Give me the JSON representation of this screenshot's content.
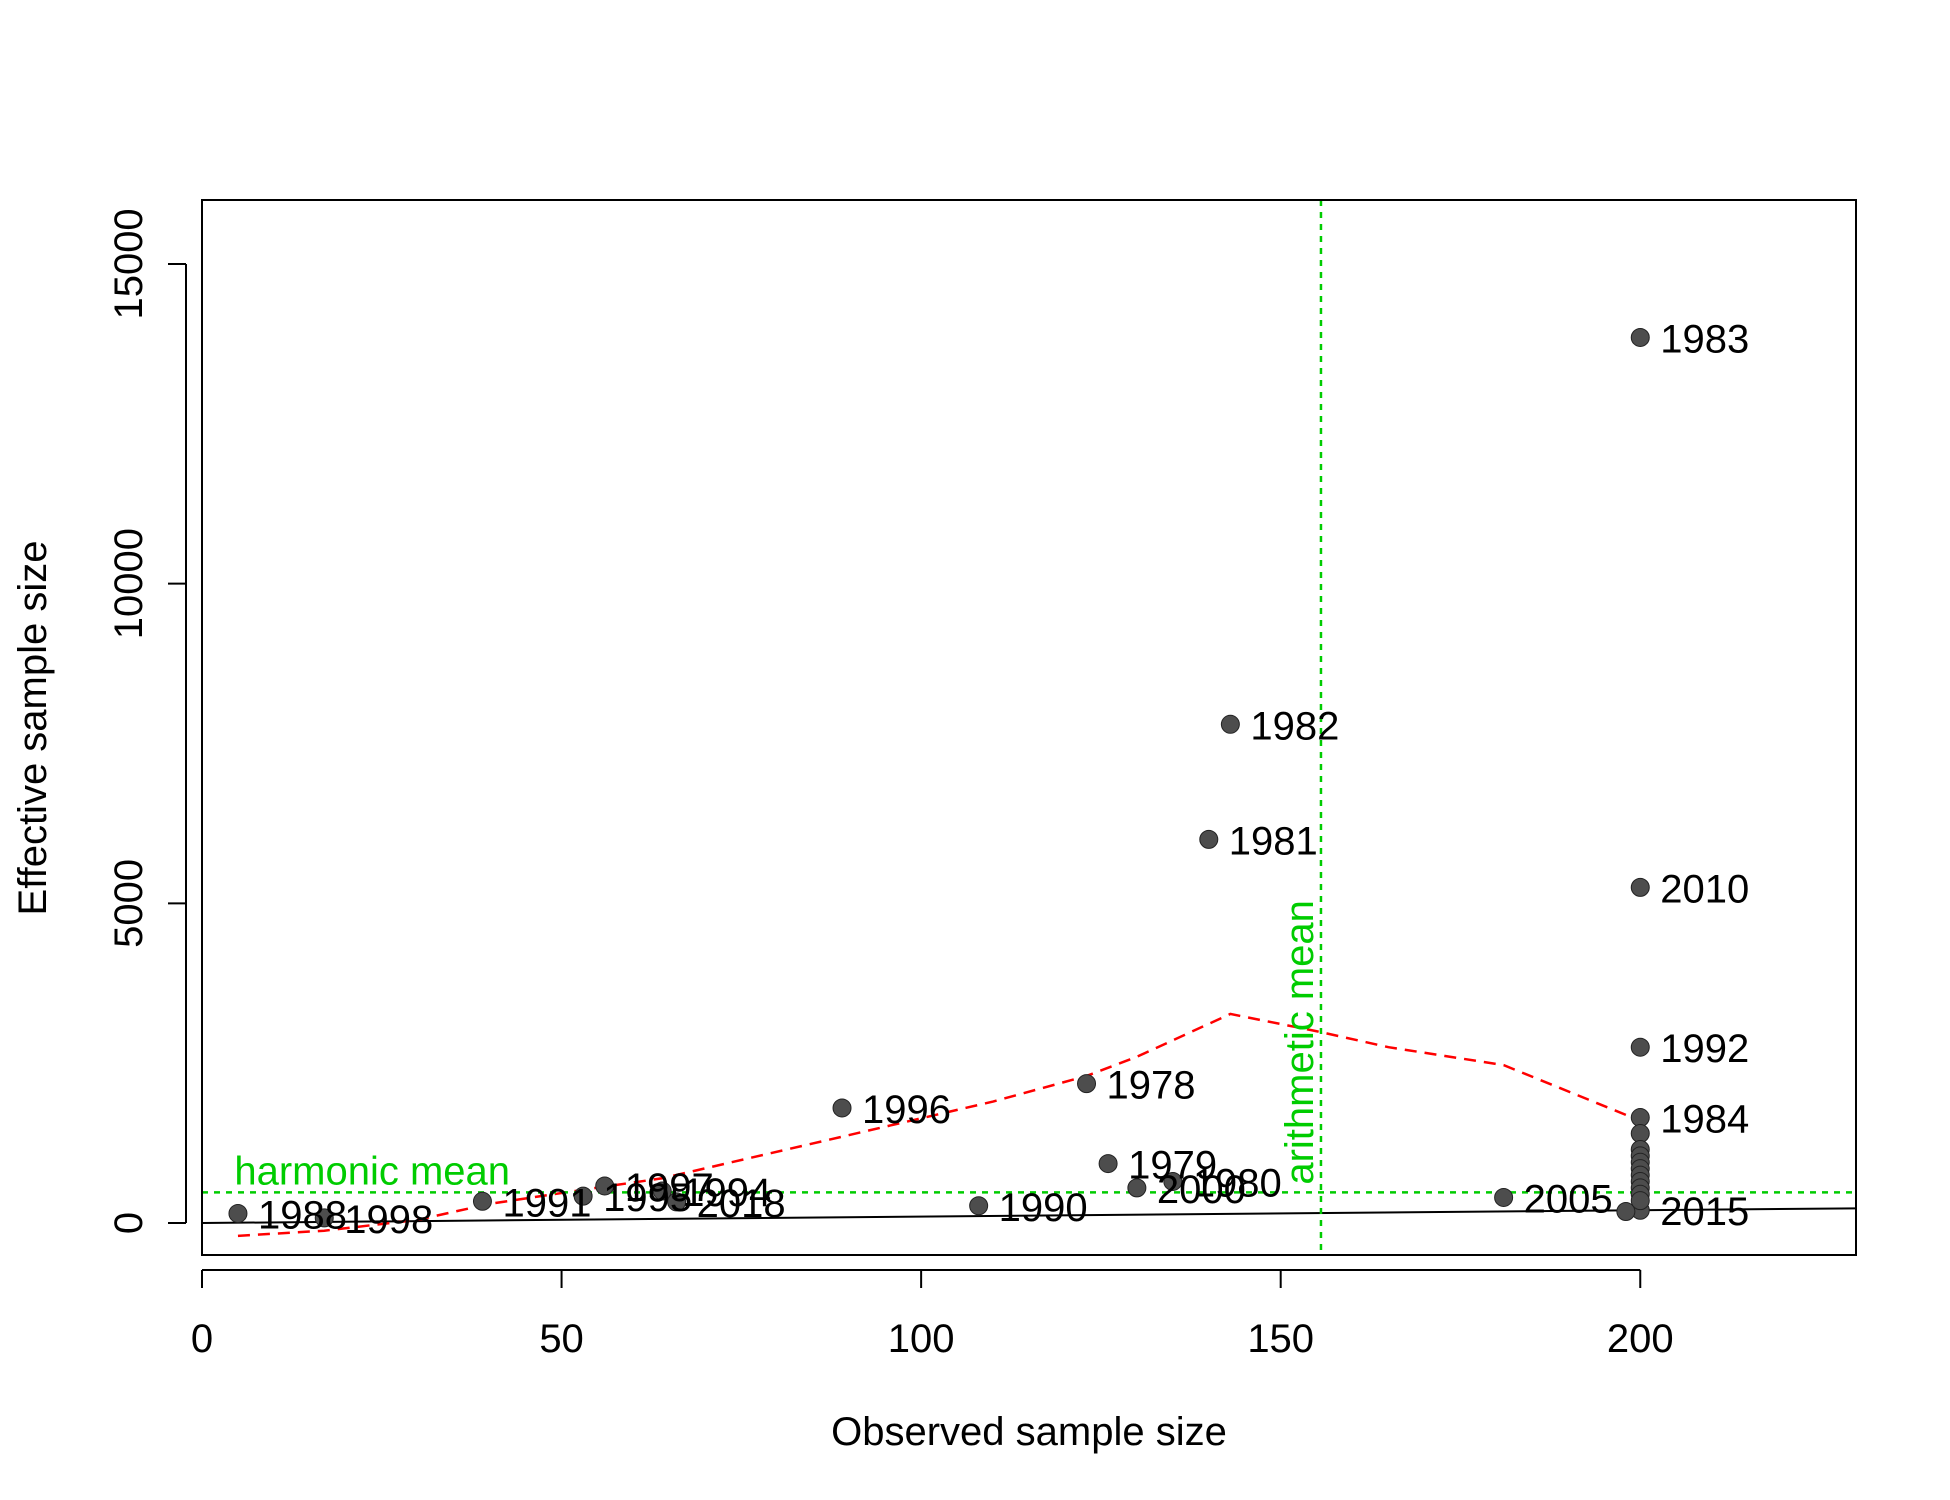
{
  "chart_data": {
    "type": "scatter",
    "title": "",
    "xlabel": "Observed sample size",
    "ylabel": "Effective sample size",
    "xlim": [
      0,
      230
    ],
    "ylim": [
      -500,
      16000
    ],
    "x_ticks": [
      0,
      50,
      100,
      150,
      200
    ],
    "y_ticks": [
      0,
      5000,
      10000,
      15000
    ],
    "grid": false,
    "points": [
      {
        "year": "1983",
        "x": 200,
        "y": 13850
      },
      {
        "year": "1982",
        "x": 143,
        "y": 7800
      },
      {
        "year": "1981",
        "x": 140,
        "y": 6000
      },
      {
        "year": "2010",
        "x": 200,
        "y": 5250
      },
      {
        "year": "1992",
        "x": 200,
        "y": 2750
      },
      {
        "year": "1978",
        "x": 123,
        "y": 2180
      },
      {
        "year": "1996",
        "x": 89,
        "y": 1800
      },
      {
        "year": "1984",
        "x": 200,
        "y": 1650
      },
      {
        "year": "1979",
        "x": 126,
        "y": 930
      },
      {
        "year": "1980",
        "x": 135,
        "y": 650
      },
      {
        "year": "2000",
        "x": 130,
        "y": 550
      },
      {
        "year": "1997",
        "x": 56,
        "y": 580
      },
      {
        "year": "1995",
        "x": 53,
        "y": 420
      },
      {
        "year": "1994",
        "x": 64,
        "y": 500
      },
      {
        "year": "2018",
        "x": 66,
        "y": 330
      },
      {
        "year": "1991",
        "x": 39,
        "y": 340
      },
      {
        "year": "2005",
        "x": 181,
        "y": 400
      },
      {
        "year": "1990",
        "x": 108,
        "y": 270
      },
      {
        "year": "1988",
        "x": 5,
        "y": 150
      },
      {
        "year": "1998",
        "x": 17,
        "y": 80
      },
      {
        "year": "2015",
        "x": 200,
        "y": 200
      },
      {
        "year": "",
        "x": 198,
        "y": 180
      },
      {
        "year": "",
        "x": 200,
        "y": 1400
      },
      {
        "year": "",
        "x": 200,
        "y": 1150
      },
      {
        "year": "",
        "x": 200,
        "y": 1050
      },
      {
        "year": "",
        "x": 200,
        "y": 950
      },
      {
        "year": "",
        "x": 200,
        "y": 850
      },
      {
        "year": "",
        "x": 200,
        "y": 750
      },
      {
        "year": "",
        "x": 200,
        "y": 650
      },
      {
        "year": "",
        "x": 200,
        "y": 550
      },
      {
        "year": "",
        "x": 200,
        "y": 450
      },
      {
        "year": "",
        "x": 200,
        "y": 350
      }
    ],
    "one_to_one_line": [
      [
        0,
        0
      ],
      [
        230,
        230
      ]
    ],
    "smoother_line": {
      "color": "#ff0000",
      "x": [
        5,
        17,
        30,
        40,
        53,
        64,
        89,
        110,
        123,
        130,
        143,
        155,
        165,
        181,
        200
      ],
      "y": [
        -200,
        -120,
        50,
        300,
        520,
        700,
        1350,
        1900,
        2300,
        2600,
        3270,
        3000,
        2750,
        2470,
        1600
      ]
    },
    "harmonic_mean": {
      "label": "harmonic mean",
      "value": 480,
      "color": "#00cc00"
    },
    "arithmetic_mean": {
      "label": "arithmetic mean",
      "value": 155.6,
      "color": "#00cc00"
    },
    "point_color": "#4d4d4d"
  }
}
